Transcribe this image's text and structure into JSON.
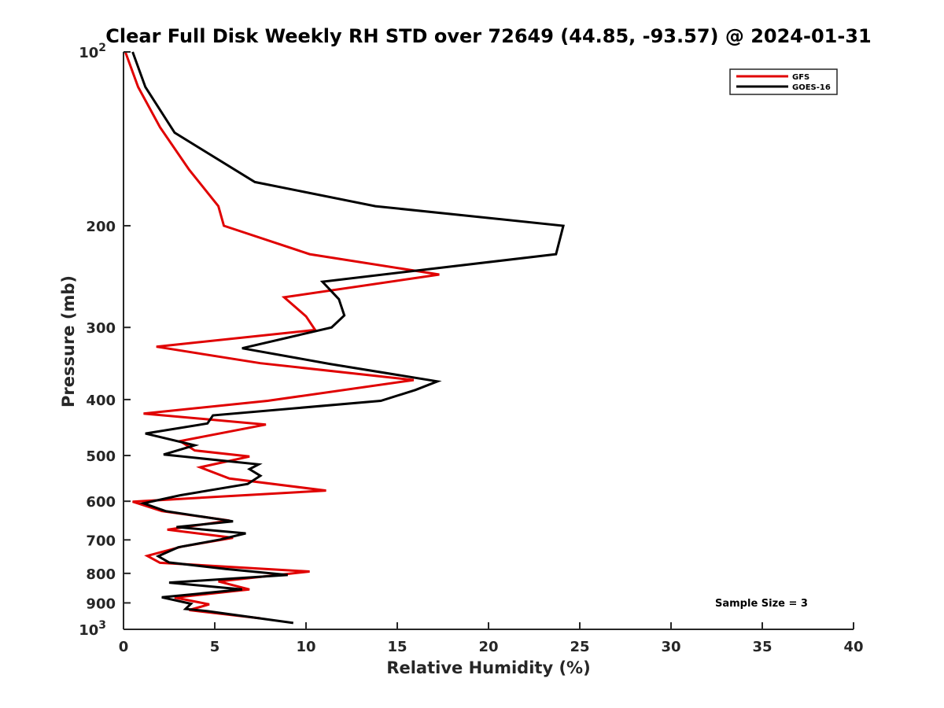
{
  "chart_data": {
    "type": "line",
    "title": "Clear Full Disk Weekly RH STD over 72649 (44.85, -93.57) @ 2024-01-31",
    "xlabel": "Relative Humidity (%)",
    "ylabel": "Pressure (mb)",
    "xlim": [
      0,
      40
    ],
    "ylim": [
      100,
      1000
    ],
    "y_scale": "log",
    "y_reversed": true,
    "x_ticks": [
      "0",
      "5",
      "10",
      "15",
      "20",
      "25",
      "30",
      "35",
      "40"
    ],
    "y_tick_values": [
      100,
      200,
      300,
      400,
      500,
      600,
      700,
      800,
      900,
      1000
    ],
    "y_tick_labels": [
      "10^2",
      "200",
      "300",
      "400",
      "500",
      "600",
      "700",
      "800",
      "900",
      "10^3"
    ],
    "grid": false,
    "legend_position": "top-right",
    "annotation": "Sample Size = 3",
    "series": [
      {
        "name": "GFS",
        "color": "#e00000",
        "points": [
          [
            0.1,
            100
          ],
          [
            0.8,
            115
          ],
          [
            2.0,
            135
          ],
          [
            3.6,
            160
          ],
          [
            5.2,
            185
          ],
          [
            5.5,
            200
          ],
          [
            10.2,
            224
          ],
          [
            17.3,
            243
          ],
          [
            8.8,
            266
          ],
          [
            10.0,
            287
          ],
          [
            10.5,
            303
          ],
          [
            1.8,
            324
          ],
          [
            7.5,
            346
          ],
          [
            15.9,
            370
          ],
          [
            7.9,
            402
          ],
          [
            1.1,
            423
          ],
          [
            7.8,
            442
          ],
          [
            3.1,
            472
          ],
          [
            3.9,
            490
          ],
          [
            6.9,
            502
          ],
          [
            4.2,
            524
          ],
          [
            5.8,
            548
          ],
          [
            11.1,
            575
          ],
          [
            0.5,
            601
          ],
          [
            2.1,
            624
          ],
          [
            5.8,
            648
          ],
          [
            2.4,
            672
          ],
          [
            6.0,
            694
          ],
          [
            3.2,
            719
          ],
          [
            1.3,
            746
          ],
          [
            2.0,
            767
          ],
          [
            10.2,
            794
          ],
          [
            5.2,
            826
          ],
          [
            6.9,
            853
          ],
          [
            2.8,
            881
          ],
          [
            4.7,
            905
          ],
          [
            3.6,
            926
          ],
          [
            7.5,
            957
          ]
        ]
      },
      {
        "name": "GOES-16",
        "color": "#000000",
        "points": [
          [
            0.5,
            100
          ],
          [
            1.2,
            115
          ],
          [
            2.8,
            138
          ],
          [
            7.2,
            168
          ],
          [
            13.8,
            185
          ],
          [
            24.1,
            200
          ],
          [
            23.7,
            224
          ],
          [
            10.9,
            250
          ],
          [
            11.8,
            268
          ],
          [
            12.1,
            286
          ],
          [
            11.4,
            300
          ],
          [
            6.5,
            326
          ],
          [
            11.3,
            347
          ],
          [
            17.2,
            372
          ],
          [
            16.0,
            385
          ],
          [
            14.1,
            402
          ],
          [
            4.9,
            426
          ],
          [
            4.6,
            440
          ],
          [
            1.2,
            458
          ],
          [
            3.9,
            480
          ],
          [
            2.2,
            498
          ],
          [
            7.4,
            518
          ],
          [
            6.9,
            528
          ],
          [
            7.5,
            542
          ],
          [
            6.8,
            560
          ],
          [
            3.1,
            586
          ],
          [
            1.1,
            605
          ],
          [
            2.3,
            624
          ],
          [
            6.0,
            650
          ],
          [
            2.9,
            665
          ],
          [
            6.7,
            682
          ],
          [
            5.3,
            699
          ],
          [
            3.0,
            721
          ],
          [
            1.9,
            747
          ],
          [
            2.5,
            766
          ],
          [
            5.6,
            786
          ],
          [
            9.0,
            805
          ],
          [
            2.5,
            830
          ],
          [
            6.5,
            853
          ],
          [
            2.1,
            880
          ],
          [
            3.7,
            903
          ],
          [
            3.4,
            922
          ],
          [
            4.6,
            930
          ],
          [
            9.3,
            975
          ]
        ]
      }
    ]
  }
}
